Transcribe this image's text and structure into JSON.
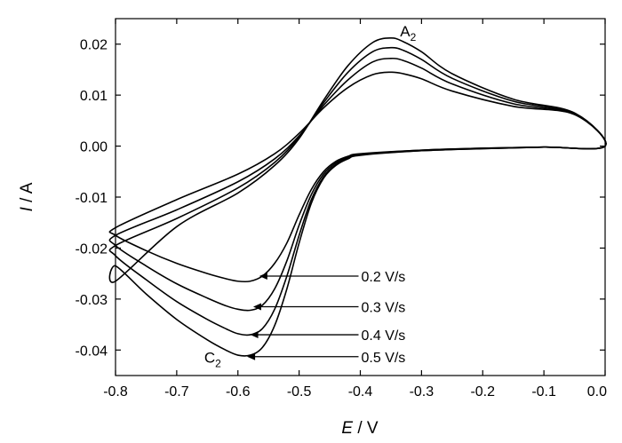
{
  "chart_data": {
    "type": "line",
    "title": "",
    "xlabel_italic": "E",
    "xlabel_unit": " / V",
    "ylabel_italic": "I",
    "ylabel_unit": " / A",
    "xlim": [
      -0.8,
      0.0
    ],
    "ylim": [
      -0.045,
      0.025
    ],
    "xticks": [
      -0.8,
      -0.7,
      -0.6,
      -0.5,
      -0.4,
      -0.3,
      -0.2,
      -0.1,
      0.0
    ],
    "xtick_labels": [
      "-0.8",
      "-0.7",
      "-0.6",
      "-0.5",
      "-0.4",
      "-0.3",
      "-0.2",
      "-0.1",
      "0.0"
    ],
    "yticks": [
      -0.04,
      -0.03,
      -0.02,
      -0.01,
      0.0,
      0.01,
      0.02
    ],
    "ytick_labels": [
      "-0.04",
      "-0.03",
      "-0.02",
      "-0.01",
      "0.00",
      "0.01",
      "0.02"
    ],
    "grid": false,
    "annotations": [
      {
        "main": "A",
        "sub": "2",
        "x": -0.335,
        "y": 0.0215
      },
      {
        "main": "C",
        "sub": "2",
        "x": -0.655,
        "y": -0.0425
      }
    ],
    "series": [
      {
        "name": "0.2 V/s",
        "label_x": -0.4,
        "label_y": -0.0255,
        "arrow_x": -0.565,
        "points": [
          [
            -0.8,
            -0.0175
          ],
          [
            -0.75,
            -0.0205
          ],
          [
            -0.7,
            -0.023
          ],
          [
            -0.65,
            -0.025
          ],
          [
            -0.62,
            -0.026
          ],
          [
            -0.6,
            -0.0265
          ],
          [
            -0.58,
            -0.0265
          ],
          [
            -0.56,
            -0.0255
          ],
          [
            -0.54,
            -0.023
          ],
          [
            -0.52,
            -0.019
          ],
          [
            -0.5,
            -0.0135
          ],
          [
            -0.48,
            -0.0085
          ],
          [
            -0.46,
            -0.005
          ],
          [
            -0.44,
            -0.003
          ],
          [
            -0.42,
            -0.002
          ],
          [
            -0.4,
            -0.0015
          ],
          [
            -0.3,
            -0.0008
          ],
          [
            -0.2,
            -0.0004
          ],
          [
            -0.1,
            -0.0002
          ],
          [
            0.0,
            0.0
          ],
          [
            -0.05,
            0.0062
          ],
          [
            -0.15,
            0.0078
          ],
          [
            -0.25,
            0.0108
          ],
          [
            -0.3,
            0.0132
          ],
          [
            -0.33,
            0.0142
          ],
          [
            -0.35,
            0.0145
          ],
          [
            -0.38,
            0.014
          ],
          [
            -0.42,
            0.0115
          ],
          [
            -0.46,
            0.0075
          ],
          [
            -0.5,
            0.0025
          ],
          [
            -0.54,
            -0.0015
          ],
          [
            -0.6,
            -0.0055
          ],
          [
            -0.7,
            -0.0105
          ],
          [
            -0.8,
            -0.016
          ]
        ]
      },
      {
        "name": "0.3 V/s",
        "label_x": -0.4,
        "label_y": -0.0315,
        "arrow_x": -0.575,
        "points": [
          [
            -0.8,
            -0.0195
          ],
          [
            -0.75,
            -0.0235
          ],
          [
            -0.7,
            -0.027
          ],
          [
            -0.65,
            -0.0298
          ],
          [
            -0.62,
            -0.0313
          ],
          [
            -0.6,
            -0.032
          ],
          [
            -0.58,
            -0.0322
          ],
          [
            -0.56,
            -0.0312
          ],
          [
            -0.54,
            -0.028
          ],
          [
            -0.52,
            -0.0225
          ],
          [
            -0.5,
            -0.0155
          ],
          [
            -0.48,
            -0.0095
          ],
          [
            -0.46,
            -0.0055
          ],
          [
            -0.44,
            -0.0033
          ],
          [
            -0.42,
            -0.0022
          ],
          [
            -0.4,
            -0.0016
          ],
          [
            -0.3,
            -0.0008
          ],
          [
            -0.2,
            -0.0004
          ],
          [
            -0.1,
            -0.0002
          ],
          [
            0.0,
            0.0
          ],
          [
            -0.05,
            0.0063
          ],
          [
            -0.15,
            0.0083
          ],
          [
            -0.25,
            0.0122
          ],
          [
            -0.3,
            0.0153
          ],
          [
            -0.33,
            0.0168
          ],
          [
            -0.35,
            0.0172
          ],
          [
            -0.38,
            0.0165
          ],
          [
            -0.42,
            0.013
          ],
          [
            -0.46,
            0.008
          ],
          [
            -0.5,
            0.002
          ],
          [
            -0.54,
            -0.0025
          ],
          [
            -0.6,
            -0.007
          ],
          [
            -0.7,
            -0.0125
          ],
          [
            -0.8,
            -0.0175
          ]
        ]
      },
      {
        "name": "0.4 V/s",
        "label_x": -0.4,
        "label_y": -0.037,
        "arrow_x": -0.58,
        "points": [
          [
            -0.8,
            -0.0215
          ],
          [
            -0.75,
            -0.0262
          ],
          [
            -0.7,
            -0.0305
          ],
          [
            -0.65,
            -0.034
          ],
          [
            -0.62,
            -0.0358
          ],
          [
            -0.6,
            -0.0368
          ],
          [
            -0.58,
            -0.037
          ],
          [
            -0.56,
            -0.0358
          ],
          [
            -0.54,
            -0.032
          ],
          [
            -0.52,
            -0.0255
          ],
          [
            -0.5,
            -0.0175
          ],
          [
            -0.48,
            -0.0105
          ],
          [
            -0.46,
            -0.006
          ],
          [
            -0.44,
            -0.0036
          ],
          [
            -0.42,
            -0.0024
          ],
          [
            -0.4,
            -0.0017
          ],
          [
            -0.3,
            -0.0009
          ],
          [
            -0.2,
            -0.0005
          ],
          [
            -0.1,
            -0.0002
          ],
          [
            0.0,
            0.0
          ],
          [
            -0.05,
            0.0064
          ],
          [
            -0.15,
            0.0088
          ],
          [
            -0.25,
            0.0133
          ],
          [
            -0.3,
            0.017
          ],
          [
            -0.33,
            0.0188
          ],
          [
            -0.35,
            0.0193
          ],
          [
            -0.38,
            0.0185
          ],
          [
            -0.42,
            0.0145
          ],
          [
            -0.46,
            0.0085
          ],
          [
            -0.5,
            0.0018
          ],
          [
            -0.54,
            -0.0032
          ],
          [
            -0.6,
            -0.0082
          ],
          [
            -0.7,
            -0.0142
          ],
          [
            -0.8,
            -0.0195
          ]
        ]
      },
      {
        "name": "0.5 V/s",
        "label_x": -0.4,
        "label_y": -0.0413,
        "arrow_x": -0.585,
        "points": [
          [
            -0.8,
            -0.0235
          ],
          [
            -0.75,
            -0.029
          ],
          [
            -0.7,
            -0.034
          ],
          [
            -0.65,
            -0.038
          ],
          [
            -0.62,
            -0.04
          ],
          [
            -0.6,
            -0.041
          ],
          [
            -0.58,
            -0.041
          ],
          [
            -0.56,
            -0.0395
          ],
          [
            -0.54,
            -0.0352
          ],
          [
            -0.52,
            -0.028
          ],
          [
            -0.5,
            -0.019
          ],
          [
            -0.48,
            -0.0112
          ],
          [
            -0.46,
            -0.0063
          ],
          [
            -0.44,
            -0.0038
          ],
          [
            -0.42,
            -0.0025
          ],
          [
            -0.4,
            -0.0018
          ],
          [
            -0.3,
            -0.0009
          ],
          [
            -0.2,
            -0.0005
          ],
          [
            -0.1,
            -0.0002
          ],
          [
            0.0,
            0.0
          ],
          [
            -0.05,
            0.0065
          ],
          [
            -0.15,
            0.0092
          ],
          [
            -0.25,
            0.0142
          ],
          [
            -0.3,
            0.0185
          ],
          [
            -0.33,
            0.0205
          ],
          [
            -0.35,
            0.0212
          ],
          [
            -0.38,
            0.0203
          ],
          [
            -0.42,
            0.0158
          ],
          [
            -0.46,
            0.009
          ],
          [
            -0.5,
            0.0015
          ],
          [
            -0.54,
            -0.0038
          ],
          [
            -0.6,
            -0.0092
          ],
          [
            -0.7,
            -0.0158
          ],
          [
            -0.8,
            -0.0265
          ]
        ]
      }
    ]
  }
}
